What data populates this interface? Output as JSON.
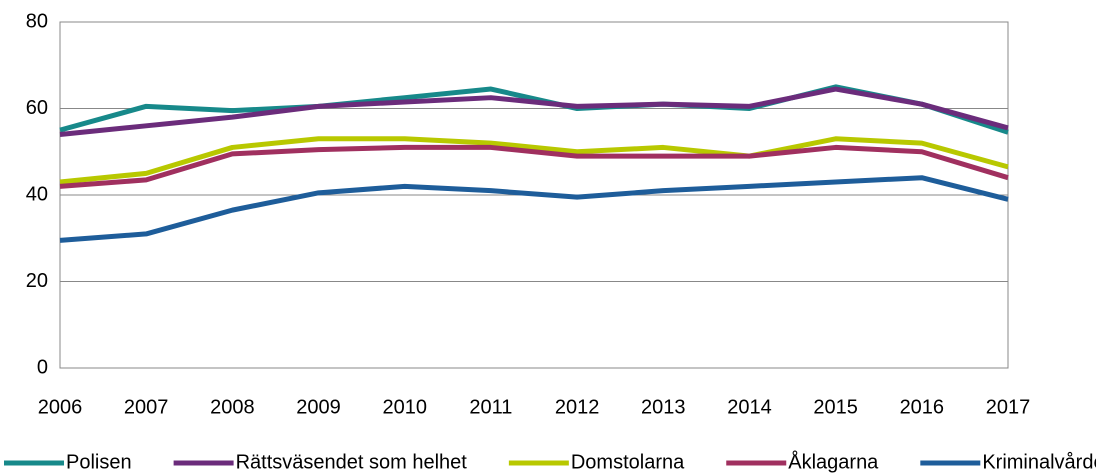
{
  "chart_data": {
    "type": "line",
    "categories": [
      "2006",
      "2007",
      "2008",
      "2009",
      "2010",
      "2011",
      "2012",
      "2013",
      "2014",
      "2015",
      "2016",
      "2017"
    ],
    "series": [
      {
        "name": "Polisen",
        "color": "#17898a",
        "values": [
          55,
          60.5,
          59.5,
          60.5,
          62.5,
          64.5,
          60,
          61,
          60,
          65,
          61,
          54.5
        ]
      },
      {
        "name": "Rättsväsendet som helhet",
        "color": "#6b2c7b",
        "values": [
          54,
          56,
          58,
          60.5,
          61.5,
          62.5,
          60.5,
          61,
          60.5,
          64.5,
          61,
          55.5
        ]
      },
      {
        "name": "Domstolarna",
        "color": "#b8c800",
        "values": [
          43,
          45,
          51,
          53,
          53,
          52,
          50,
          51,
          49,
          53,
          52,
          46.5
        ]
      },
      {
        "name": "Åklagarna",
        "color": "#a0305f",
        "values": [
          42,
          43.5,
          49.5,
          50.5,
          51,
          51,
          49,
          49,
          49,
          51,
          50,
          44
        ]
      },
      {
        "name": "Kriminalvården",
        "color": "#1e5d9a",
        "values": [
          29.5,
          31,
          36.5,
          40.5,
          42,
          41,
          39.5,
          41,
          42,
          43,
          44,
          39
        ]
      }
    ],
    "ylim": [
      0,
      80
    ],
    "yticks": [
      0,
      20,
      40,
      60,
      80
    ],
    "grid": true,
    "legend": "bottom"
  }
}
